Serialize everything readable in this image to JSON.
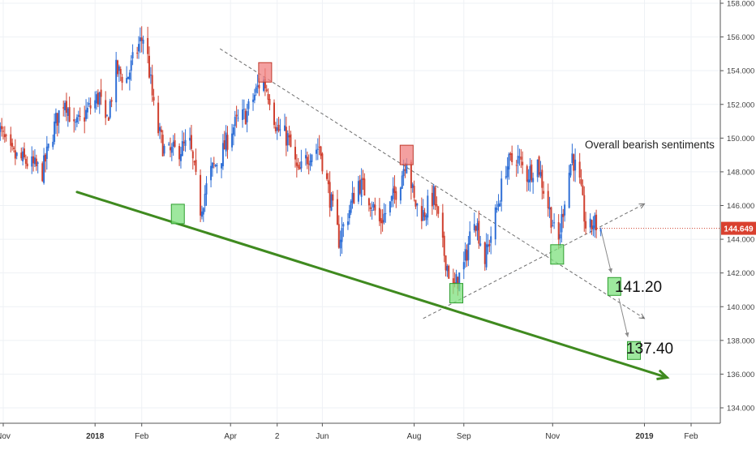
{
  "chart_data": {
    "type": "candlestick",
    "instrument_last_price": "144.649",
    "y_axis": {
      "ylim": [
        133.0,
        158.0
      ],
      "ticks": [
        "158.000",
        "156.000",
        "154.000",
        "152.000",
        "150.000",
        "148.000",
        "146.000",
        "144.000",
        "142.000",
        "140.000",
        "138.000",
        "136.000",
        "134.000"
      ],
      "tick_values": [
        158,
        156,
        154,
        152,
        150,
        148,
        146,
        144,
        142,
        140,
        138,
        136,
        134
      ]
    },
    "x_axis": {
      "ticks": [
        {
          "label": "Nov",
          "date": "2017-11-01",
          "bold": false
        },
        {
          "label": "2018",
          "date": "2018-01-01",
          "bold": true
        },
        {
          "label": "Feb",
          "date": "2018-02-01",
          "bold": false
        },
        {
          "label": "Apr",
          "date": "2018-04-01",
          "bold": false
        },
        {
          "label": "2",
          "date": "2018-05-02",
          "bold": false
        },
        {
          "label": "Jun",
          "date": "2018-06-01",
          "bold": false
        },
        {
          "label": "Aug",
          "date": "2018-08-01",
          "bold": false
        },
        {
          "label": "Sep",
          "date": "2018-09-03",
          "bold": false
        },
        {
          "label": "Nov",
          "date": "2018-11-01",
          "bold": false
        },
        {
          "label": "2019",
          "date": "2019-01-01",
          "bold": true
        },
        {
          "label": "Feb",
          "date": "2019-02-01",
          "bold": false
        }
      ]
    },
    "price_path": [
      [
        "2017-10-27",
        151.0
      ],
      [
        "2017-11-06",
        149.0
      ],
      [
        "2017-11-16",
        148.6
      ],
      [
        "2017-11-27",
        148.0
      ],
      [
        "2017-12-06",
        151.0
      ],
      [
        "2017-12-12",
        152.4
      ],
      [
        "2017-12-18",
        150.5
      ],
      [
        "2017-12-26",
        151.5
      ],
      [
        "2018-01-04",
        152.5
      ],
      [
        "2018-01-08",
        150.6
      ],
      [
        "2018-01-15",
        154.0
      ],
      [
        "2018-01-22",
        153.5
      ],
      [
        "2018-01-30",
        155.5
      ],
      [
        "2018-02-03",
        156.2
      ],
      [
        "2018-02-10",
        151.0
      ],
      [
        "2018-02-17",
        149.0
      ],
      [
        "2018-02-25",
        149.3
      ],
      [
        "2018-03-05",
        149.6
      ],
      [
        "2018-03-12",
        145.8
      ],
      [
        "2018-03-19",
        148.0
      ],
      [
        "2018-03-26",
        149.0
      ],
      [
        "2018-04-02",
        150.6
      ],
      [
        "2018-04-12",
        151.5
      ],
      [
        "2018-04-22",
        153.6
      ],
      [
        "2018-04-27",
        152.5
      ],
      [
        "2018-05-02",
        150.5
      ],
      [
        "2018-05-09",
        150.0
      ],
      [
        "2018-05-16",
        147.8
      ],
      [
        "2018-05-24",
        149.2
      ],
      [
        "2018-05-30",
        149.5
      ],
      [
        "2018-06-06",
        146.5
      ],
      [
        "2018-06-12",
        144.0
      ],
      [
        "2018-06-18",
        145.5
      ],
      [
        "2018-06-25",
        147.4
      ],
      [
        "2018-07-02",
        146.5
      ],
      [
        "2018-07-09",
        145.0
      ],
      [
        "2018-07-16",
        146.0
      ],
      [
        "2018-07-23",
        147.6
      ],
      [
        "2018-07-27",
        149.0
      ],
      [
        "2018-08-01",
        146.2
      ],
      [
        "2018-08-07",
        145.5
      ],
      [
        "2018-08-14",
        146.6
      ],
      [
        "2018-08-20",
        143.5
      ],
      [
        "2018-08-27",
        141.0
      ],
      [
        "2018-09-03",
        142.4
      ],
      [
        "2018-09-10",
        145.5
      ],
      [
        "2018-09-17",
        142.8
      ],
      [
        "2018-09-24",
        145.4
      ],
      [
        "2018-10-01",
        148.3
      ],
      [
        "2018-10-08",
        148.9
      ],
      [
        "2018-10-15",
        147.8
      ],
      [
        "2018-10-22",
        148.6
      ],
      [
        "2018-10-26",
        147.0
      ],
      [
        "2018-11-01",
        145.0
      ],
      [
        "2018-11-04",
        143.2
      ],
      [
        "2018-11-09",
        146.5
      ],
      [
        "2018-11-14",
        149.0
      ],
      [
        "2018-11-19",
        147.2
      ],
      [
        "2018-11-24",
        144.2
      ],
      [
        "2018-11-28",
        145.0
      ],
      [
        "2018-12-03",
        144.6
      ]
    ],
    "annotations": {
      "text": "Overall bearish sentiments",
      "target_1_label": "141.20",
      "target_2_label": "137.40",
      "target_1": {
        "date": "2018-12-12",
        "value": 141.2
      },
      "target_2": {
        "date": "2018-12-25",
        "value": 137.4
      },
      "red_boxes": [
        {
          "date": "2018-04-24",
          "value": 153.9
        },
        {
          "date": "2018-07-27",
          "value": 149.0
        }
      ],
      "green_boxes": [
        {
          "date": "2018-02-25",
          "value": 145.5
        },
        {
          "date": "2018-08-29",
          "value": 140.8
        },
        {
          "date": "2018-11-04",
          "value": 143.1
        }
      ],
      "support_line": [
        [
          "2017-12-20",
          146.8
        ],
        [
          "2019-01-16",
          135.8
        ]
      ],
      "channel_upper": [
        [
          "2018-03-25",
          155.3
        ],
        [
          "2019-01-01",
          139.3
        ]
      ],
      "channel_lower": [
        [
          "2018-08-07",
          139.3
        ],
        [
          "2019-01-01",
          146.1
        ]
      ],
      "projection_arrows": [
        [
          [
            "2018-12-03",
            144.6
          ],
          [
            "2018-12-10",
            142.0
          ]
        ],
        [
          [
            "2018-12-15",
            140.5
          ],
          [
            "2018-12-21",
            138.2
          ]
        ]
      ]
    }
  }
}
